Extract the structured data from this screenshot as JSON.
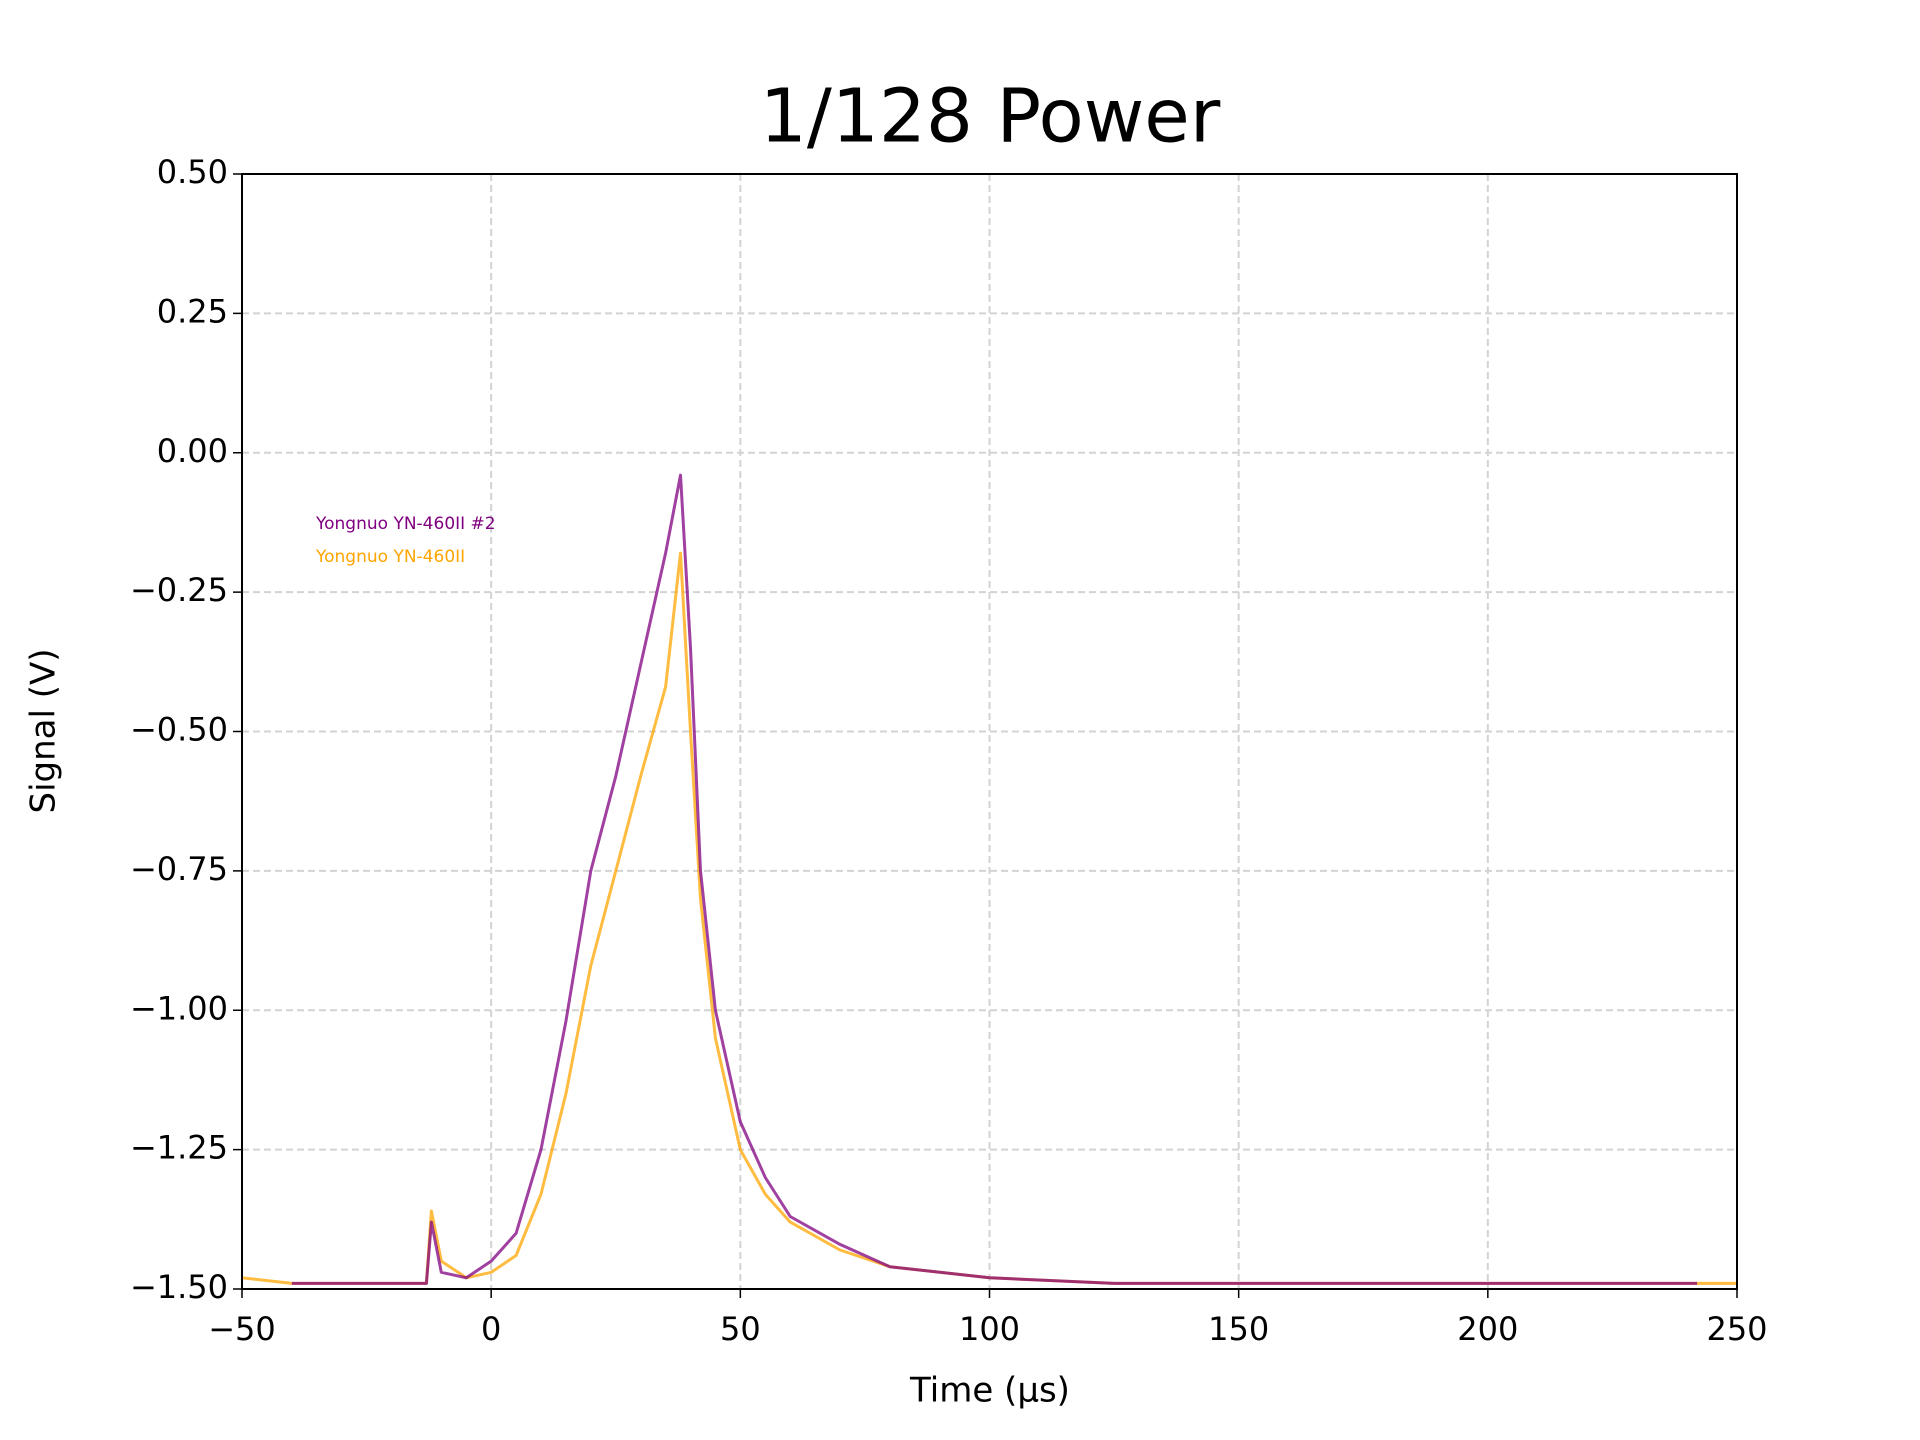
{
  "chart_data": {
    "type": "line",
    "title": "1/128 Power",
    "xlabel": "Time (μs)",
    "ylabel": "Signal (V)",
    "x": [
      -50,
      -40,
      -13,
      -12,
      -10,
      -5,
      0,
      5,
      10,
      15,
      20,
      25,
      30,
      35,
      38,
      40,
      42,
      45,
      50,
      55,
      60,
      70,
      80,
      90,
      100,
      125,
      150,
      200,
      242,
      250
    ],
    "series": [
      {
        "name": "Yongnuo YN-460II #2",
        "color": "#800080",
        "values": [
          null,
          -1.49,
          -1.49,
          -1.38,
          -1.47,
          -1.48,
          -1.45,
          -1.4,
          -1.25,
          -1.02,
          -0.75,
          -0.58,
          -0.38,
          -0.18,
          -0.04,
          -0.35,
          -0.75,
          -1.0,
          -1.2,
          -1.3,
          -1.37,
          -1.42,
          -1.46,
          -1.47,
          -1.48,
          -1.49,
          -1.49,
          -1.49,
          -1.49,
          null
        ]
      },
      {
        "name": "Yongnuo YN-460II",
        "color": "#ffa500",
        "values": [
          -1.48,
          -1.49,
          -1.49,
          -1.36,
          -1.45,
          -1.48,
          -1.47,
          -1.44,
          -1.33,
          -1.15,
          -0.92,
          -0.75,
          -0.58,
          -0.42,
          -0.18,
          -0.5,
          -0.8,
          -1.05,
          -1.25,
          -1.33,
          -1.38,
          -1.43,
          -1.46,
          -1.47,
          -1.48,
          -1.49,
          -1.49,
          -1.49,
          -1.49,
          -1.49
        ]
      }
    ],
    "xlim": [
      -50,
      250
    ],
    "ylim": [
      -1.5,
      0.5
    ],
    "xticks": [
      {
        "value": -50,
        "label": "−50"
      },
      0,
      50,
      100,
      150,
      200,
      250
    ],
    "yticks": [
      {
        "value": 0.5,
        "label": "0.50"
      },
      {
        "value": 0.25,
        "label": "0.25"
      },
      {
        "value": 0,
        "label": "0.00"
      },
      {
        "value": -0.25,
        "label": "−0.25"
      },
      {
        "value": -0.5,
        "label": "−0.50"
      },
      {
        "value": -0.75,
        "label": "−0.75"
      },
      {
        "value": -1,
        "label": "−1.00"
      },
      {
        "value": -1.25,
        "label": "−1.25"
      },
      {
        "value": -1.5,
        "label": "−1.50"
      }
    ],
    "grid": true,
    "legend": "upper left"
  }
}
